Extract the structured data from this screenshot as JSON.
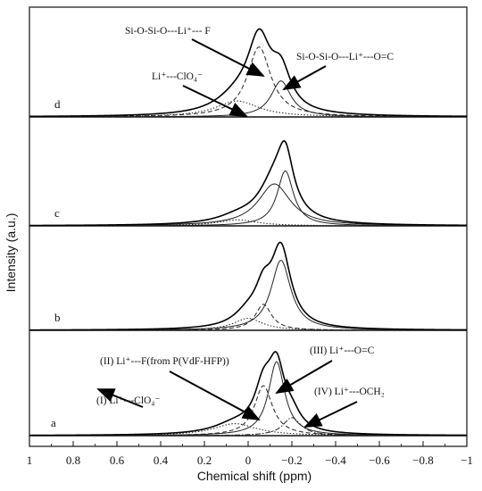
{
  "chart_data": {
    "type": "line",
    "xlabel": "Chemical shift (ppm)",
    "ylabel": "Intensity (a.u.)",
    "xlim": [
      1,
      -1
    ],
    "x_reversed": true,
    "xticks": [
      "1",
      "0.8",
      "0.6",
      "0.4",
      "0.2",
      "0",
      "−0.2",
      "−0.4",
      "−0.6",
      "−0.8",
      "−1"
    ],
    "grid": false,
    "panels": [
      {
        "label": "d",
        "total": {
          "center": -0.05,
          "width": 0.11,
          "height": 0.88
        },
        "components": [
          {
            "center": -0.05,
            "width": 0.065,
            "height": 0.7,
            "style": "dashed",
            "annotation": "Si-O-Si-O---Li⁺--- F"
          },
          {
            "center": 0.05,
            "width": 0.12,
            "height": 0.16,
            "style": "dotted",
            "annotation": "Li⁺---ClO₄⁻"
          },
          {
            "center": -0.15,
            "width": 0.055,
            "height": 0.36,
            "style": "solid",
            "annotation": "Si-O-Si-O---Li⁺---O=C"
          }
        ]
      },
      {
        "label": "c",
        "total": {
          "center": -0.17,
          "width": 0.07,
          "height": 0.85
        },
        "components": [
          {
            "center": -0.17,
            "width": 0.045,
            "height": 0.55,
            "style": "solid"
          },
          {
            "center": -0.12,
            "width": 0.09,
            "height": 0.42,
            "style": "solid"
          },
          {
            "center": 0.05,
            "width": 0.11,
            "height": 0.06,
            "style": "dotted"
          }
        ]
      },
      {
        "label": "b",
        "total": {
          "center": -0.15,
          "width": 0.08,
          "height": 0.88
        },
        "components": [
          {
            "center": -0.15,
            "width": 0.055,
            "height": 0.7,
            "style": "solid"
          },
          {
            "center": -0.07,
            "width": 0.045,
            "height": 0.26,
            "style": "dashed"
          },
          {
            "center": 0.0,
            "width": 0.08,
            "height": 0.12,
            "style": "dotted"
          }
        ]
      },
      {
        "label": "a",
        "total": {
          "center": -0.12,
          "width": 0.09,
          "height": 0.84
        },
        "components": [
          {
            "center": -0.13,
            "width": 0.045,
            "height": 0.74,
            "style": "solid",
            "annotation": "(III) Li⁺---O=C"
          },
          {
            "center": -0.07,
            "width": 0.05,
            "height": 0.5,
            "style": "dashed",
            "annotation": "(II) Li⁺---F(from P(VdF-HFP))"
          },
          {
            "center": 0.06,
            "width": 0.12,
            "height": 0.12,
            "style": "dotted",
            "annotation": "(I) Li⁺---ClO₄⁻"
          },
          {
            "center": -0.2,
            "width": 0.05,
            "height": 0.18,
            "style": "dashdot",
            "annotation": "(IV) Li⁺---OCH₂"
          }
        ]
      }
    ]
  }
}
